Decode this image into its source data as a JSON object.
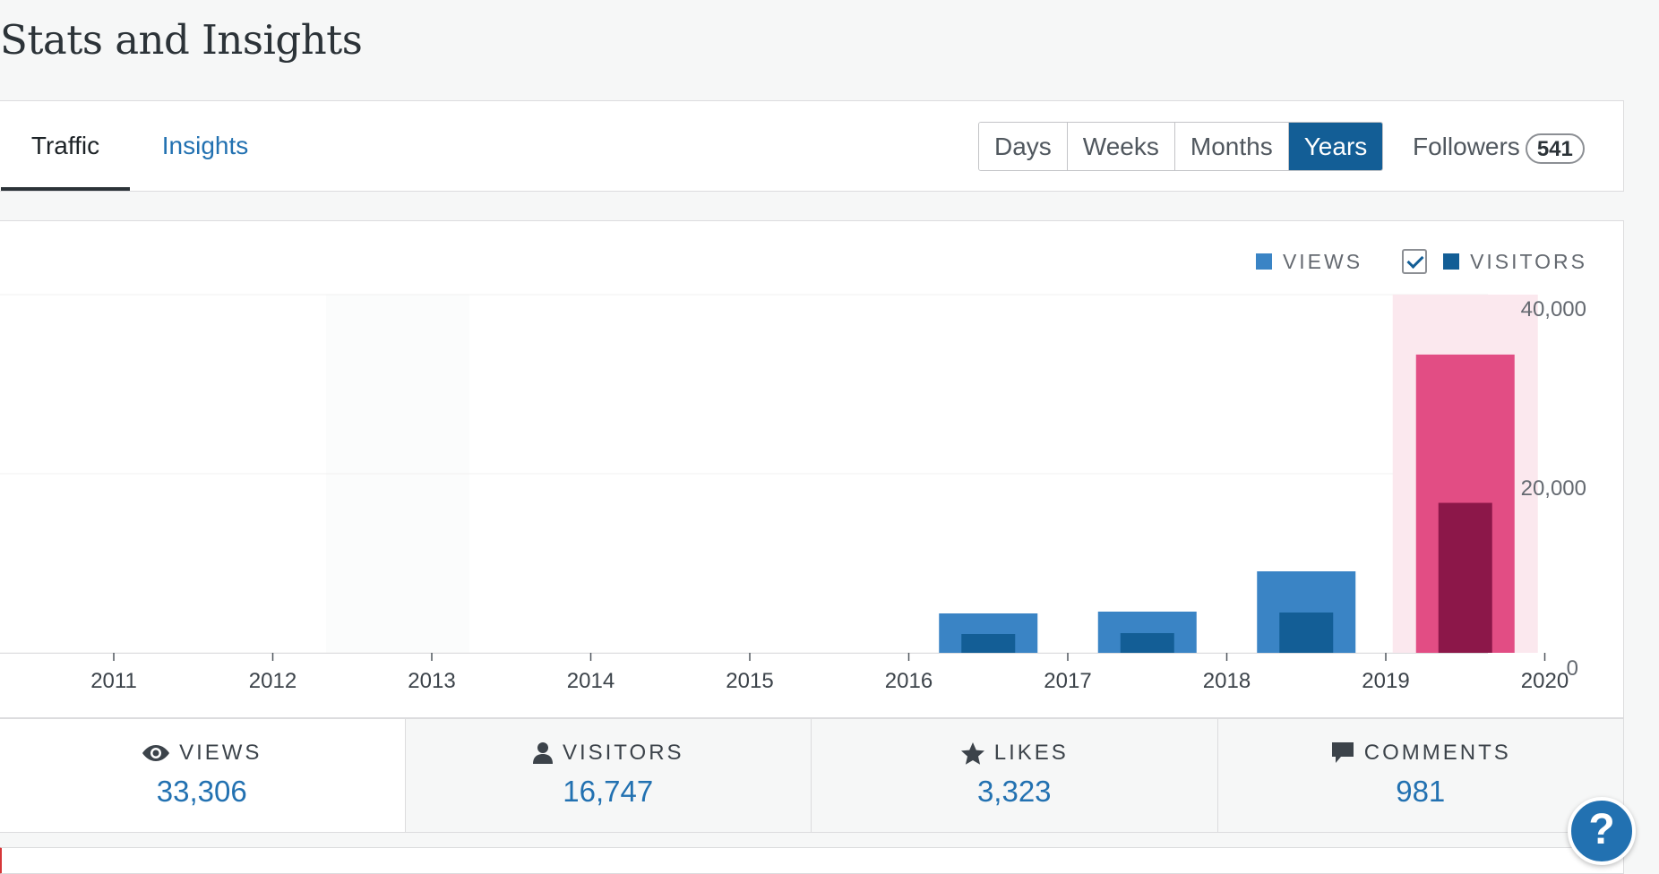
{
  "page": {
    "title": "Stats and Insights"
  },
  "nav": {
    "tabs": [
      {
        "label": "Traffic",
        "selected": true
      },
      {
        "label": "Insights",
        "selected": false
      }
    ],
    "periods": [
      {
        "label": "Days",
        "selected": false
      },
      {
        "label": "Weeks",
        "selected": false
      },
      {
        "label": "Months",
        "selected": false
      },
      {
        "label": "Years",
        "selected": true
      }
    ],
    "followers": {
      "label": "Followers",
      "count": "541"
    }
  },
  "legend": {
    "views": {
      "label": "VIEWS",
      "color": "#3a84c5"
    },
    "visitors": {
      "label": "VISITORS",
      "color": "#135e96",
      "checked": true
    }
  },
  "chart_data": {
    "type": "bar",
    "title": "",
    "xlabel": "",
    "ylabel": "",
    "categories": [
      "2011",
      "2012",
      "2013",
      "2014",
      "2015",
      "2016",
      "2017",
      "2018",
      "2019",
      "2020"
    ],
    "series": [
      {
        "name": "VIEWS",
        "values": [
          0,
          0,
          0,
          0,
          0,
          4400,
          4600,
          9100,
          33306,
          0
        ],
        "color": "#3a84c5"
      },
      {
        "name": "VISITORS",
        "values": [
          0,
          0,
          0,
          0,
          0,
          2100,
          2200,
          4500,
          16747,
          0
        ],
        "color": "#135e96"
      }
    ],
    "selected_category": "2019",
    "selected_colors": {
      "views": "#e24d84",
      "visitors": "#8c1749",
      "highlight": "#fbe8ee"
    },
    "y_ticks": [
      "0",
      "20,000",
      "40,000"
    ],
    "ylim": [
      0,
      40000
    ],
    "grid": true,
    "legend_position": "top-right"
  },
  "stats": [
    {
      "label": "VIEWS",
      "value": "33,306",
      "icon": "eye-icon"
    },
    {
      "label": "VISITORS",
      "value": "16,747",
      "icon": "person-icon"
    },
    {
      "label": "LIKES",
      "value": "3,323",
      "icon": "star-icon"
    },
    {
      "label": "COMMENTS",
      "value": "981",
      "icon": "comment-icon"
    }
  ],
  "help": {
    "label": "?"
  }
}
